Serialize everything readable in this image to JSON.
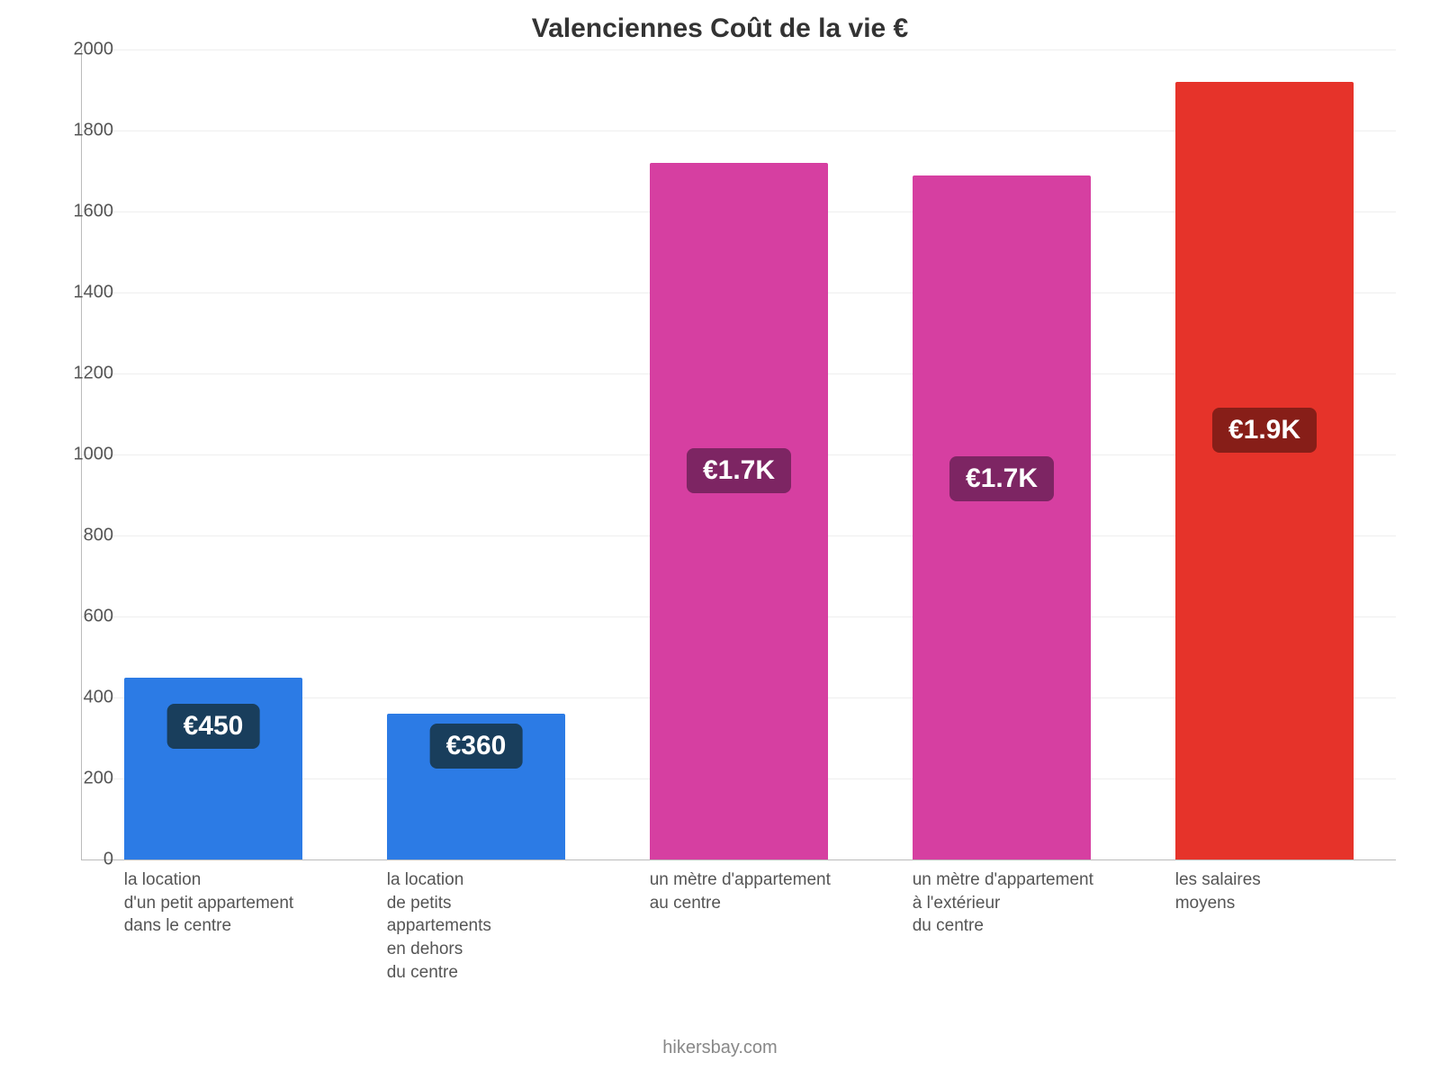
{
  "chart": {
    "type": "bar",
    "title": "Valenciennes Coût de la vie €",
    "title_fontsize": 30,
    "title_color": "#333333",
    "background_color": "#ffffff",
    "grid_color": "#eeeeee",
    "axis_color": "#bbbbbb",
    "ylim": [
      0,
      2000
    ],
    "ytick_step": 200,
    "yticks": [
      "0",
      "200",
      "400",
      "600",
      "800",
      "1000",
      "1200",
      "1400",
      "1600",
      "1800",
      "2000"
    ],
    "bar_width_ratio": 0.68,
    "label_fontsize": 19,
    "label_color": "#555555",
    "value_fontsize": 30,
    "source": "hikersbay.com",
    "bars": [
      {
        "category_lines": [
          "la location",
          "d'un petit appartement",
          "dans le centre"
        ],
        "value": 450,
        "display": "€450",
        "color": "#2c7be5",
        "badge_bg": "#193e5c",
        "badge_y_value": 330
      },
      {
        "category_lines": [
          "la location",
          "de petits",
          "appartements",
          "en dehors",
          "du centre"
        ],
        "value": 360,
        "display": "€360",
        "color": "#2c7be5",
        "badge_bg": "#193e5c",
        "badge_y_value": 280
      },
      {
        "category_lines": [
          "un mètre d'appartement",
          "au centre"
        ],
        "value": 1720,
        "display": "€1.7K",
        "color": "#d63fa1",
        "badge_bg": "#7d2563",
        "badge_y_value": 960
      },
      {
        "category_lines": [
          "un mètre d'appartement",
          "à l'extérieur",
          "du centre"
        ],
        "value": 1690,
        "display": "€1.7K",
        "color": "#d63fa1",
        "badge_bg": "#7d2563",
        "badge_y_value": 940
      },
      {
        "category_lines": [
          "les salaires",
          "moyens"
        ],
        "value": 1920,
        "display": "€1.9K",
        "color": "#e6332a",
        "badge_bg": "#871e18",
        "badge_y_value": 1060
      }
    ]
  }
}
